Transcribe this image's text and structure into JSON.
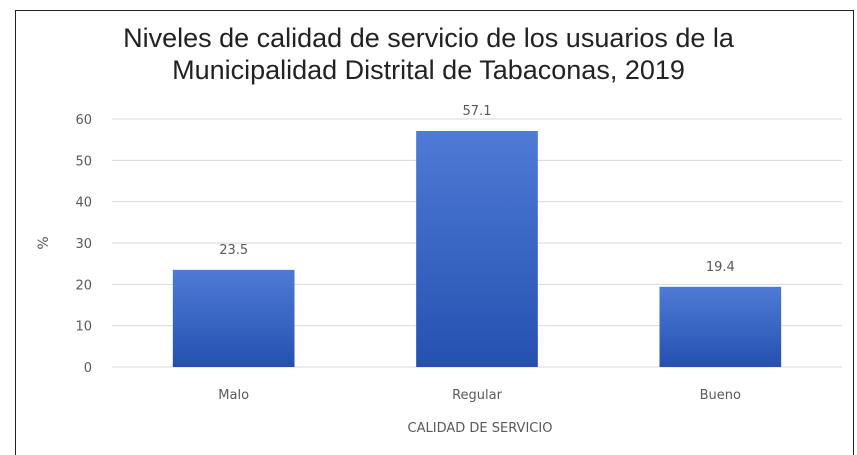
{
  "chart_data": {
    "type": "bar",
    "title": "Niveles de calidad de servicio de los usuarios de la Municipalidad Distrital de Tabaconas, 2019",
    "title_lines": [
      "Niveles de calidad de servicio de los usuarios de la",
      "Municipalidad Distrital de Tabaconas, 2019"
    ],
    "categories": [
      "Malo",
      "Regular",
      "Bueno"
    ],
    "values": [
      23.5,
      57.1,
      19.4
    ],
    "data_labels": [
      "23.5",
      "57.1",
      "19.4"
    ],
    "xlabel": "CALIDAD DE SERVICIO",
    "ylabel": "%",
    "ylim": [
      0,
      60
    ],
    "yticks": [
      0,
      10,
      20,
      30,
      40,
      50,
      60
    ],
    "grid": true,
    "legend": "none",
    "colors": {
      "bar_top": "#4f7bd6",
      "bar_bottom": "#2450b0",
      "grid": "#d9d9d9",
      "text": "#595959"
    }
  }
}
